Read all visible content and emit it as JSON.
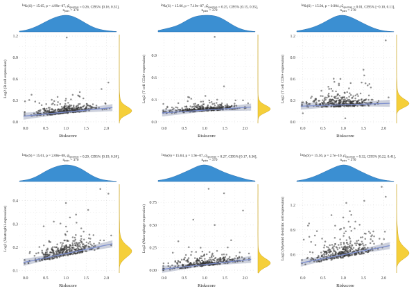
{
  "figure": {
    "description_colors": {
      "top_density": "#3b8fd2",
      "right_density": "#f5cf3a",
      "points": "#333333",
      "fit_line": "#7d8fcf",
      "ci_band": "#c3c8d6",
      "grid": "#cfcfcf"
    }
  },
  "chart_data": [
    {
      "type": "scatter",
      "annotation": {
        "prefix": "log",
        "sub_e": "e",
        "stat": "(S) = 15.65, p = 4.99e−07, ",
        "rho": "ρ̂",
        "sub_sp": "Spearman",
        "tail": " = 0.26, CI95% [0.16, 0.35],",
        "n": "n",
        "sub_pairs": "pairs",
        "n_value": " = 370"
      },
      "xlabel": "Riskscore",
      "ylabel": "Log2 (B cell expression)",
      "xlim": [
        -0.15,
        2.25
      ],
      "ylim": [
        -0.02,
        1.22
      ],
      "xticks": [
        0.0,
        0.5,
        1.0,
        1.5,
        2.0
      ],
      "xtick_labels": [
        "0.0",
        "0.5",
        "1.0",
        "1.5",
        "2.0"
      ],
      "yticks": [
        0.0,
        0.3,
        0.6,
        0.9,
        1.2
      ],
      "ytick_labels": [
        "0.0",
        "0.3",
        "0.6",
        "0.9",
        "1.2"
      ],
      "fit": {
        "x": [
          -0.05,
          2.15
        ],
        "y": [
          0.08,
          0.2
        ]
      },
      "points": {
        "count": 370,
        "seed": 11,
        "y_base": 0.09,
        "y_spread": 0.05,
        "outliers": [
          [
            1.02,
            1.18
          ],
          [
            1.88,
            0.46
          ],
          [
            2.05,
            0.55
          ],
          [
            0.15,
            0.38
          ],
          [
            1.3,
            0.37
          ],
          [
            0.65,
            0.31
          ]
        ]
      }
    },
    {
      "type": "scatter",
      "annotation": {
        "prefix": "log",
        "sub_e": "e",
        "stat": "(S) = 15.66, p = 7.19e−07, ",
        "rho": "ρ̂",
        "sub_sp": "Spearman",
        "tail": " = 0.25, CI95% [0.15, 0.35],",
        "n": "n",
        "sub_pairs": "pairs",
        "n_value": " = 370"
      },
      "xlabel": "Riskscore",
      "ylabel": "Log2 (T cell CD4+ expression)",
      "xlim": [
        -0.15,
        2.25
      ],
      "ylim": [
        -0.02,
        1.18
      ],
      "xticks": [
        0.0,
        0.5,
        1.0,
        1.5,
        2.0
      ],
      "xtick_labels": [
        "0.0",
        "0.5",
        "1.0",
        "1.5",
        "2.0"
      ],
      "yticks": [
        0.0,
        0.3,
        0.6,
        0.9
      ],
      "ytick_labels": [
        "0.0",
        "0.3",
        "0.6",
        "0.9"
      ],
      "fit": {
        "x": [
          -0.05,
          2.15
        ],
        "y": [
          0.12,
          0.2
        ]
      },
      "points": {
        "count": 370,
        "seed": 23,
        "y_base": 0.14,
        "y_spread": 0.035,
        "outliers": [
          [
            1.25,
            1.15
          ],
          [
            1.48,
            0.48
          ],
          [
            1.02,
            0.35
          ],
          [
            0.62,
            0.33
          ],
          [
            1.95,
            0.29
          ]
        ]
      }
    },
    {
      "type": "scatter",
      "annotation": {
        "prefix": "log",
        "sub_e": "e",
        "stat": "(S) = 15.94, p = 0.904, ",
        "rho": "ρ̂",
        "sub_sp": "Spearman",
        "tail": " = 0.01, CI95% [−0.10, 0.11],",
        "n": "n",
        "sub_pairs": "pairs",
        "n_value": " = 370"
      },
      "xlabel": "Riskscore",
      "ylabel": "Log2 (T cell CD8+ expression)",
      "xlim": [
        -0.15,
        2.25
      ],
      "ylim": [
        -0.02,
        1.22
      ],
      "xticks": [
        0.0,
        0.5,
        1.0,
        1.5,
        2.0
      ],
      "xtick_labels": [
        "0.0",
        "0.5",
        "1.0",
        "1.5",
        "2.0"
      ],
      "yticks": [
        0.0,
        0.3,
        0.6,
        0.9,
        1.2
      ],
      "ytick_labels": [
        "0.0",
        "0.3",
        "0.6",
        "0.9",
        "1.2"
      ],
      "fit": {
        "x": [
          -0.05,
          2.15
        ],
        "y": [
          0.22,
          0.26
        ]
      },
      "points": {
        "count": 370,
        "seed": 37,
        "y_base": 0.24,
        "y_spread": 0.07,
        "outliers": [
          [
            2.05,
            1.14
          ],
          [
            1.5,
            0.73
          ],
          [
            1.52,
            0.65
          ],
          [
            0.78,
            0.56
          ],
          [
            1.55,
            0.54
          ],
          [
            0.0,
            0.12
          ],
          [
            1.05,
            0.05
          ]
        ]
      }
    },
    {
      "type": "scatter",
      "annotation": {
        "prefix": "log",
        "sub_e": "e",
        "stat": "(S) = 15.61, p = 2.08e−08, ",
        "rho": "ρ̂",
        "sub_sp": "Spearman",
        "tail": " = 0.29, CI95% [0.19, 0.38],",
        "n": "n",
        "sub_pairs": "pairs",
        "n_value": " = 370"
      },
      "xlabel": "Riskscore",
      "ylabel": "Log2 (Neutrophil expression)",
      "xlim": [
        -0.15,
        2.25
      ],
      "ylim": [
        0.09,
        0.47
      ],
      "xticks": [
        0.0,
        0.5,
        1.0,
        1.5,
        2.0
      ],
      "xtick_labels": [
        "0.0",
        "0.5",
        "1.0",
        "1.5",
        "2.0"
      ],
      "yticks": [
        0.1,
        0.2,
        0.3,
        0.4
      ],
      "ytick_labels": [
        "0.1",
        "0.2",
        "0.3",
        "0.4"
      ],
      "fit": {
        "x": [
          -0.05,
          2.15
        ],
        "y": [
          0.135,
          0.215
        ]
      },
      "points": {
        "count": 370,
        "seed": 53,
        "y_base": 0.165,
        "y_spread": 0.03,
        "outliers": [
          [
            1.85,
            0.45
          ],
          [
            2.05,
            0.43
          ],
          [
            1.0,
            0.39
          ],
          [
            1.55,
            0.36
          ],
          [
            1.25,
            0.34
          ],
          [
            0.7,
            0.31
          ],
          [
            0.45,
            0.29
          ]
        ]
      }
    },
    {
      "type": "scatter",
      "annotation": {
        "prefix": "log",
        "sub_e": "e",
        "stat": "(S) = 15.64, p = 1.9e−07, ",
        "rho": "ρ̂",
        "sub_sp": "Spearman",
        "tail": " = 0.27, CI95% [0.17, 0.36],",
        "n": "n",
        "sub_pairs": "pairs",
        "n_value": " = 370"
      },
      "xlabel": "Riskscore",
      "ylabel": "Log2 (Macrophage expression)",
      "xlim": [
        -0.15,
        2.25
      ],
      "ylim": [
        -0.03,
        0.95
      ],
      "xticks": [
        0.0,
        0.5,
        1.0,
        1.5,
        2.0
      ],
      "xtick_labels": [
        "0.0",
        "0.5",
        "1.0",
        "1.5",
        "2.0"
      ],
      "yticks": [
        0.0,
        0.25,
        0.5,
        0.75
      ],
      "ytick_labels": [
        "0.00",
        "0.25",
        "0.50",
        "0.75"
      ],
      "fit": {
        "x": [
          -0.05,
          2.15
        ],
        "y": [
          0.01,
          0.12
        ]
      },
      "points": {
        "count": 370,
        "seed": 71,
        "y_base": 0.045,
        "y_spread": 0.04,
        "outliers": [
          [
            1.1,
            0.9
          ],
          [
            1.48,
            0.85
          ],
          [
            1.95,
            0.66
          ],
          [
            0.72,
            0.56
          ],
          [
            1.25,
            0.5
          ],
          [
            0.35,
            0.32
          ]
        ]
      }
    },
    {
      "type": "scatter",
      "annotation": {
        "prefix": "log",
        "sub_e": "e",
        "stat": "(S) = 15.56, p = 2.7e−10, ",
        "rho": "ρ̂",
        "sub_sp": "Spearman",
        "tail": " = 0.32, CI95% [0.22, 0.41],",
        "n": "n",
        "sub_pairs": "pairs",
        "n_value": " = 370"
      },
      "xlabel": "Riskscore",
      "ylabel": "Log2 (Myeloid dendritic cell expression)",
      "xlim": [
        -0.15,
        2.25
      ],
      "ylim": [
        0.38,
        1.45
      ],
      "xticks": [
        0.0,
        0.5,
        1.0,
        1.5,
        2.0
      ],
      "xtick_labels": [
        "0.0",
        "0.5",
        "1.0",
        "1.5",
        "2.0"
      ],
      "yticks": [
        0.6,
        0.9,
        1.2
      ],
      "ytick_labels": [
        "0.6",
        "0.9",
        "1.2"
      ],
      "fit": {
        "x": [
          -0.05,
          2.15
        ],
        "y": [
          0.5,
          0.71
        ]
      },
      "points": {
        "count": 370,
        "seed": 97,
        "y_base": 0.58,
        "y_spread": 0.1,
        "outliers": [
          [
            1.95,
            1.42
          ],
          [
            2.05,
            1.3
          ],
          [
            1.52,
            1.25
          ],
          [
            1.0,
            1.05
          ],
          [
            1.3,
            1.0
          ],
          [
            0.8,
            0.95
          ]
        ]
      }
    }
  ]
}
